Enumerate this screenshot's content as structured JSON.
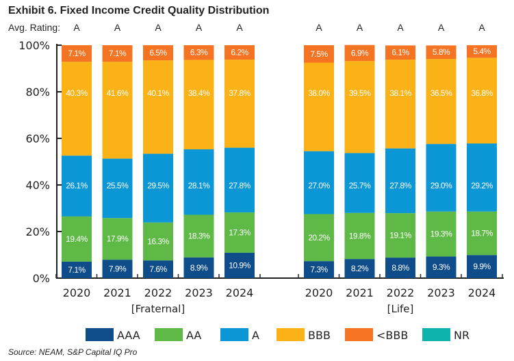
{
  "chart_data": {
    "type": "bar",
    "stacked": true,
    "title": "Exhibit 6. Fixed Income Credit Quality Distribution",
    "avg_rating_label": "Avg. Rating:",
    "source": "Source: NEAM, S&P Capital IQ Pro",
    "ylim": [
      0,
      100
    ],
    "yticks": [
      "0%",
      "20%",
      "40%",
      "60%",
      "80%",
      "100%"
    ],
    "legend_position": "bottom",
    "groups": [
      {
        "name": "[Fraternal]",
        "categories": [
          "2020",
          "2021",
          "2022",
          "2023",
          "2024"
        ],
        "avg_rating": [
          "A",
          "A",
          "A",
          "A",
          "A"
        ],
        "series": [
          {
            "name": "AAA",
            "values": [
              7.1,
              7.9,
              7.6,
              8.9,
              10.9
            ]
          },
          {
            "name": "AA",
            "values": [
              19.4,
              17.9,
              16.3,
              18.3,
              17.3
            ]
          },
          {
            "name": "A",
            "values": [
              26.1,
              25.5,
              29.5,
              28.1,
              27.8
            ]
          },
          {
            "name": "BBB",
            "values": [
              40.3,
              41.6,
              40.1,
              38.4,
              37.8
            ]
          },
          {
            "name": "<BBB",
            "values": [
              7.1,
              7.1,
              6.5,
              6.3,
              6.2
            ]
          },
          {
            "name": "NR",
            "values": [
              0,
              0,
              0,
              0,
              0
            ]
          }
        ]
      },
      {
        "name": "[Life]",
        "categories": [
          "2020",
          "2021",
          "2022",
          "2023",
          "2024"
        ],
        "avg_rating": [
          "A",
          "A",
          "A",
          "A",
          "A"
        ],
        "series": [
          {
            "name": "AAA",
            "values": [
              7.3,
              8.2,
              8.8,
              9.3,
              9.9
            ]
          },
          {
            "name": "AA",
            "values": [
              20.2,
              19.8,
              19.1,
              19.3,
              18.7
            ]
          },
          {
            "name": "A",
            "values": [
              27.0,
              25.7,
              27.8,
              29.0,
              29.2
            ]
          },
          {
            "name": "BBB",
            "values": [
              38.0,
              39.5,
              38.1,
              36.5,
              36.8
            ]
          },
          {
            "name": "<BBB",
            "values": [
              7.5,
              6.9,
              6.1,
              5.8,
              5.4
            ]
          },
          {
            "name": "NR",
            "values": [
              0,
              0,
              0,
              0,
              0
            ]
          }
        ]
      }
    ],
    "colors": {
      "AAA": "#0f4c8a",
      "AA": "#5fb946",
      "A": "#0b96d6",
      "BBB": "#fbb217",
      "<BBB": "#f47424",
      "NR": "#0fb3ad"
    }
  }
}
